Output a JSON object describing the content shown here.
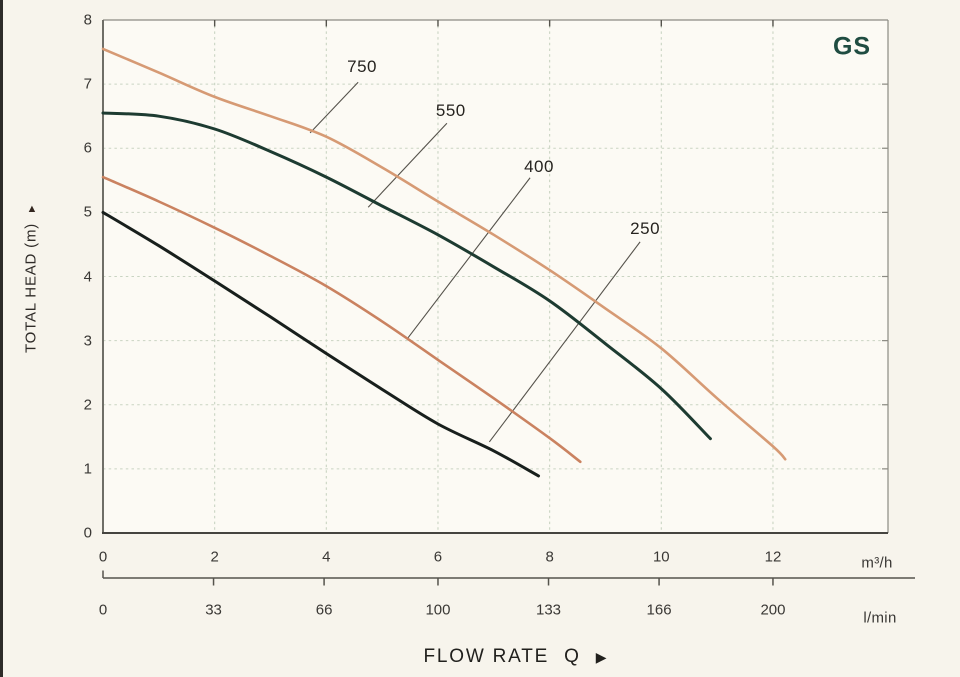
{
  "badge": {
    "text": "GS",
    "color": "#1f4c41"
  },
  "y_axis": {
    "arrow": "▲",
    "label": "TOTAL HEAD (m)",
    "ticks": [
      8,
      7,
      6,
      5,
      4,
      3,
      2,
      1,
      0
    ]
  },
  "x_axis_primary": {
    "ticks": [
      0,
      2,
      4,
      6,
      8,
      10,
      12
    ],
    "unit": "m³/h"
  },
  "x_axis_secondary": {
    "ticks": [
      0,
      33,
      66,
      100,
      133,
      166,
      200
    ],
    "unit": "l/min",
    "full_scale_lmin": 200,
    "full_scale_m3h": 12
  },
  "x_label": {
    "text": "FLOW RATE",
    "symbol": "Q",
    "arrow": "▶"
  },
  "chart_data": {
    "type": "line",
    "title": "GS pump performance curves",
    "xlabel": "FLOW RATE Q",
    "ylabel": "TOTAL HEAD (m)",
    "x_units": [
      "m³/h",
      "l/min"
    ],
    "xlim": [
      0,
      14.06
    ],
    "ylim": [
      0,
      8
    ],
    "x_ticks_m3h": [
      0,
      2,
      4,
      6,
      8,
      10,
      12
    ],
    "x_ticks_lmin": [
      0,
      33,
      66,
      100,
      133,
      166,
      200
    ],
    "y_ticks": [
      0,
      1,
      2,
      3,
      4,
      5,
      6,
      7,
      8
    ],
    "grid": "dashed light-green, on",
    "legend_position": "inline curve callouts",
    "series": [
      {
        "name": "750",
        "color": "#d69a74",
        "stroke_width": 2.6,
        "points": [
          [
            0,
            7.55
          ],
          [
            1,
            7.18
          ],
          [
            2,
            6.8
          ],
          [
            3,
            6.5
          ],
          [
            4,
            6.18
          ],
          [
            5,
            5.7
          ],
          [
            6,
            5.17
          ],
          [
            7,
            4.65
          ],
          [
            8,
            4.1
          ],
          [
            9,
            3.5
          ],
          [
            10,
            2.88
          ],
          [
            11,
            2.1
          ],
          [
            12,
            1.35
          ],
          [
            12.22,
            1.15
          ]
        ],
        "label_at": [
          4.64,
          7.27
        ],
        "callout": [
          [
            4.57,
            7.03
          ],
          [
            3.71,
            6.24
          ]
        ]
      },
      {
        "name": "550",
        "color": "#1d3b31",
        "stroke_width": 3,
        "points": [
          [
            0,
            6.55
          ],
          [
            1,
            6.5
          ],
          [
            2,
            6.3
          ],
          [
            3,
            5.95
          ],
          [
            4,
            5.55
          ],
          [
            5,
            5.1
          ],
          [
            6,
            4.65
          ],
          [
            7,
            4.15
          ],
          [
            8,
            3.62
          ],
          [
            9,
            2.95
          ],
          [
            10,
            2.25
          ],
          [
            10.88,
            1.47
          ]
        ],
        "label_at": [
          6.23,
          6.58
        ],
        "callout": [
          [
            6.16,
            6.39
          ],
          [
            4.75,
            5.08
          ]
        ]
      },
      {
        "name": "400",
        "color": "#ca8260",
        "stroke_width": 2.6,
        "points": [
          [
            0,
            5.55
          ],
          [
            1,
            5.17
          ],
          [
            2,
            4.76
          ],
          [
            3,
            4.32
          ],
          [
            4,
            3.85
          ],
          [
            5,
            3.3
          ],
          [
            6,
            2.7
          ],
          [
            7,
            2.1
          ],
          [
            8,
            1.48
          ],
          [
            8.55,
            1.11
          ]
        ],
        "label_at": [
          7.81,
          5.71
        ],
        "callout": [
          [
            7.65,
            5.54
          ],
          [
            5.46,
            3.04
          ]
        ]
      },
      {
        "name": "250",
        "color": "#181f1c",
        "stroke_width": 3,
        "points": [
          [
            0,
            5.0
          ],
          [
            1,
            4.48
          ],
          [
            2,
            3.93
          ],
          [
            3,
            3.37
          ],
          [
            4,
            2.8
          ],
          [
            5,
            2.24
          ],
          [
            6,
            1.7
          ],
          [
            7,
            1.28
          ],
          [
            7.8,
            0.89
          ]
        ],
        "label_at": [
          9.71,
          4.74
        ],
        "callout": [
          [
            9.62,
            4.54
          ],
          [
            6.92,
            1.42
          ]
        ]
      }
    ]
  },
  "colors": {
    "page_background": "#f7f4ec",
    "plot_background": "#fcfaf4",
    "grid": "#c9d4c2",
    "border_light": "#8c8b83",
    "axis_dark": "#45443f",
    "tick_text": "#3a3835",
    "callout_line": "#55524b"
  }
}
